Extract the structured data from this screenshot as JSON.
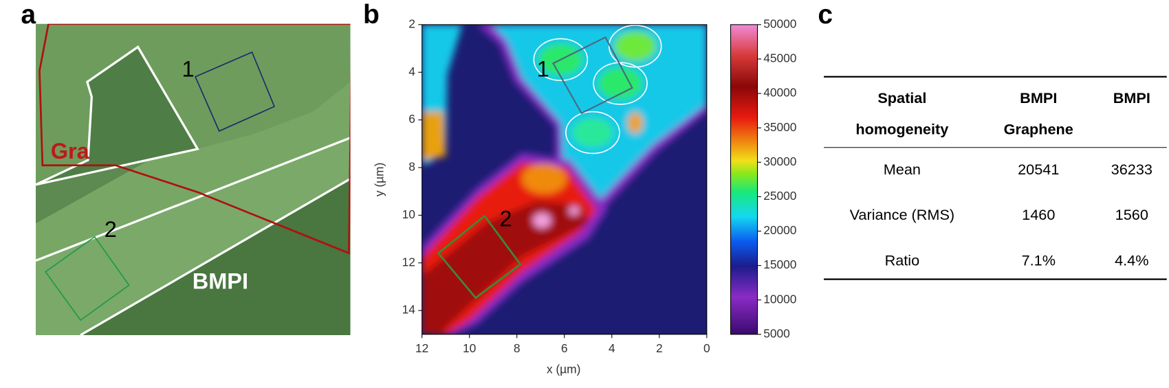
{
  "panel_a": {
    "label": "a",
    "region_labels": [
      "Gra",
      "BMPI"
    ],
    "box_labels": [
      "1",
      "2"
    ]
  },
  "panel_b": {
    "label": "b",
    "x_label": "x (µm)",
    "y_label": "y (µm)",
    "xlim": [
      12,
      0
    ],
    "xticks": [
      12,
      10,
      8,
      6,
      4,
      2,
      0
    ],
    "ylim": [
      2,
      15
    ],
    "yticks": [
      2,
      4,
      6,
      8,
      10,
      12,
      14
    ],
    "colorbar_lim": [
      5000,
      50000
    ],
    "colorbar_ticks": [
      5000,
      10000,
      15000,
      20000,
      25000,
      30000,
      35000,
      40000,
      45000,
      50000
    ],
    "box_labels": [
      "1",
      "2"
    ]
  },
  "panel_c": {
    "label": "c",
    "header": [
      [
        "Spatial",
        "homogeneity"
      ],
      [
        "BMPI",
        "Graphene"
      ],
      [
        "BMPI"
      ]
    ],
    "rows": [
      [
        "Mean",
        "20541",
        "36233"
      ],
      [
        "Variance (RMS)",
        "1460",
        "1560"
      ],
      [
        "Ratio",
        "7.1%",
        "4.4%"
      ]
    ]
  }
}
